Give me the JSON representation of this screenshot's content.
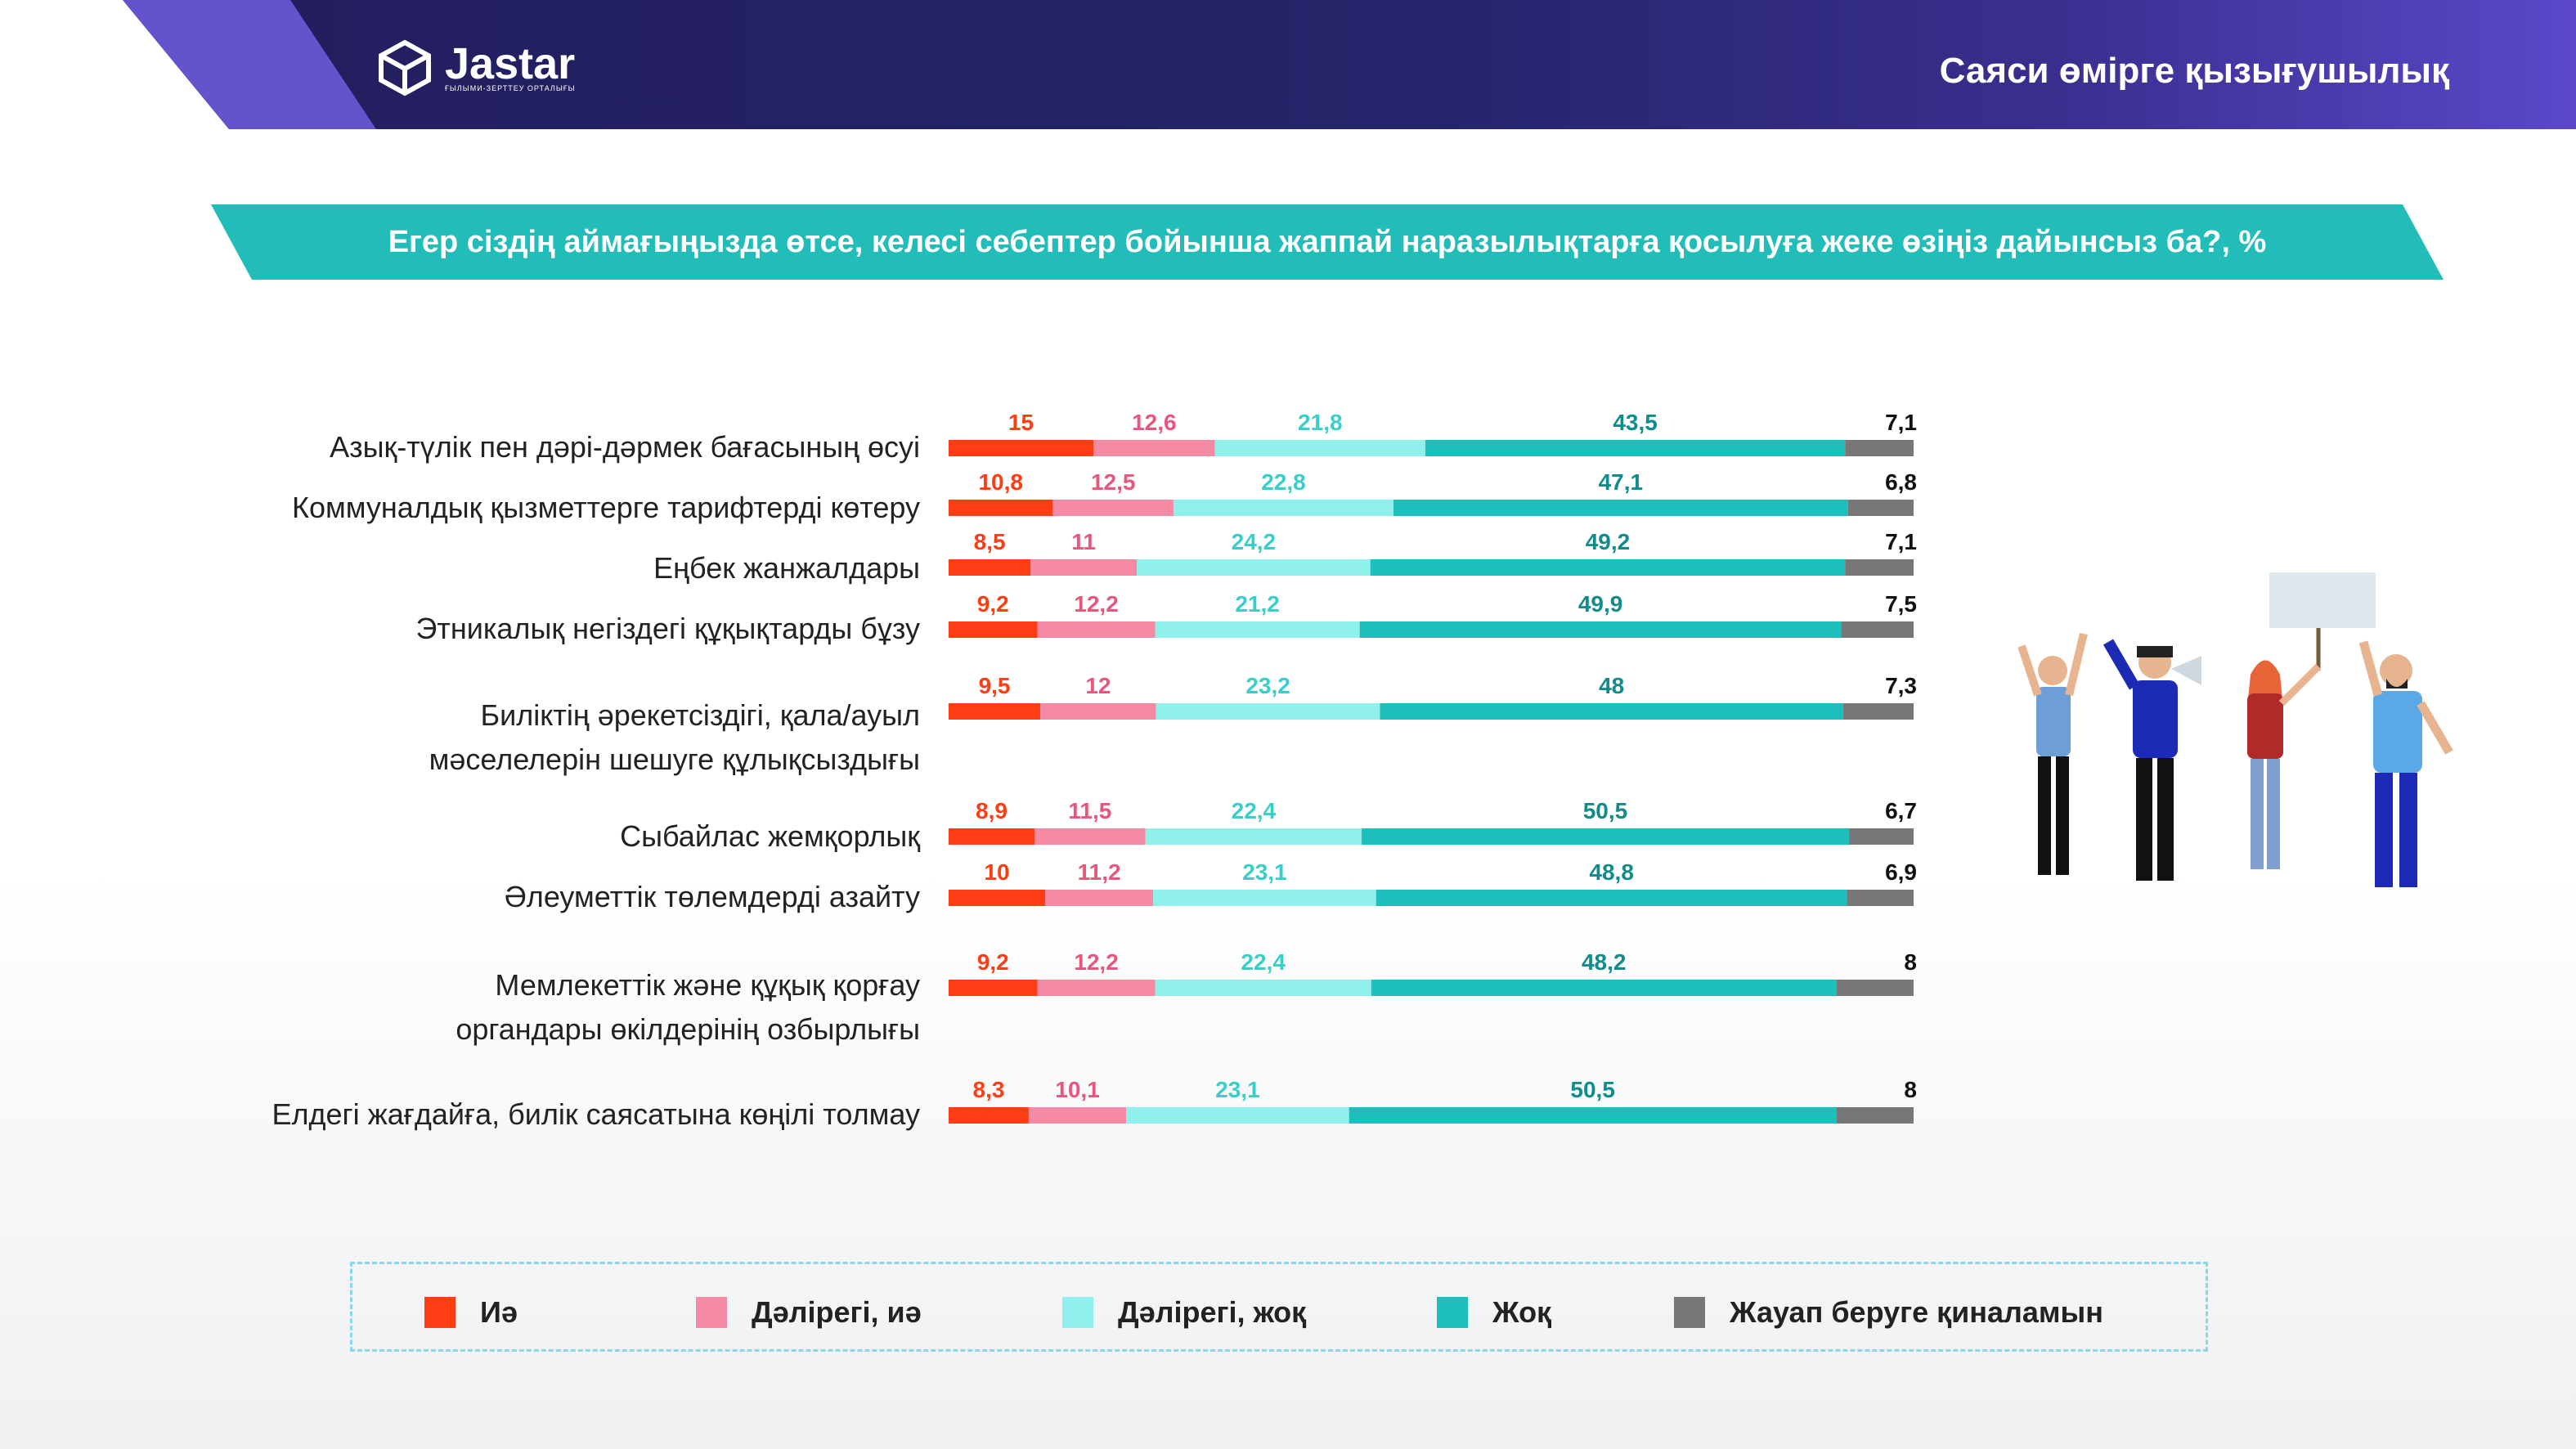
{
  "header": {
    "title": "Саяси өмірге қызығушылық",
    "logo_text": "Jastar",
    "logo_sub": "ҒЫЛЫМИ-ЗЕРТТЕУ ОРТАЛЫҒЫ"
  },
  "colors": {
    "header": "#221d5c",
    "banner": "#23bdb9",
    "ie": "#ff3d14",
    "dalirek_ie": "#f58aa5",
    "dalirek_zhok": "#8ff0ec",
    "zhok": "#1dbfbc",
    "zhauap": "#777777"
  },
  "chart_data": {
    "type": "bar",
    "orientation": "horizontal",
    "stacked": true,
    "title": "Егер сіздің аймағыңызда өтсе, келесі себептер бойынша жаппай наразылықтарға қосылуға жеке өзіңіз дайынсыз ба?, %",
    "categories": [
      [
        "Азық-түлік пен дәрі-дәрмек бағасының өсуі"
      ],
      [
        "Коммуналдық қызметтерге тарифтерді көтеру"
      ],
      [
        "Еңбек жанжалдары"
      ],
      [
        "Этникалық негіздегі құқықтарды бұзу"
      ],
      [
        "Биліктің әрекетсіздігі, қала/ауыл",
        "мәселелерін шешуге құлықсыздығы"
      ],
      [
        "Сыбайлас жемқорлық"
      ],
      [
        "Әлеуметтік төлемдерді азайту"
      ],
      [
        "Мемлекеттік және құқық қорғау",
        "органдары өкілдерінің озбырлығы"
      ],
      [
        "Елдегі жағдайға, билік саясатына көңілі толмау"
      ]
    ],
    "series": [
      {
        "name": "Иә",
        "color": "#ff3d14",
        "label_color": "#ff3d14",
        "values": [
          15,
          10.8,
          8.5,
          9.2,
          9.5,
          8.9,
          10,
          9.2,
          8.3
        ],
        "labels": [
          "15",
          "10,8",
          "8,5",
          "9,2",
          "9,5",
          "8,9",
          "10",
          "9,2",
          "8,3"
        ]
      },
      {
        "name": "Дәлірегі, иә",
        "color": "#f58aa5",
        "label_color": "#e8567c",
        "values": [
          12.6,
          12.5,
          11,
          12.2,
          12,
          11.5,
          11.2,
          12.2,
          10.1
        ],
        "labels": [
          "12,6",
          "12,5",
          "11",
          "12,2",
          "12",
          "11,5",
          "11,2",
          "12,2",
          "10,1"
        ]
      },
      {
        "name": "Дәлірегі, жоқ",
        "color": "#8ff0ec",
        "label_color": "#39cfc9",
        "values": [
          21.8,
          22.8,
          24.2,
          21.2,
          23.2,
          22.4,
          23.1,
          22.4,
          23.1
        ],
        "labels": [
          "21,8",
          "22,8",
          "24,2",
          "21,2",
          "23,2",
          "22,4",
          "23,1",
          "22,4",
          "23,1"
        ]
      },
      {
        "name": "Жоқ",
        "color": "#1dbfbc",
        "label_color": "#108c8a",
        "values": [
          43.5,
          47.1,
          49.2,
          49.9,
          48,
          50.5,
          48.8,
          48.2,
          50.5
        ],
        "labels": [
          "43,5",
          "47,1",
          "49,2",
          "49,9",
          "48",
          "50,5",
          "48,8",
          "48,2",
          "50,5"
        ]
      },
      {
        "name": "Жауап беруге қиналамын",
        "color": "#777777",
        "label_color": "#111111",
        "values": [
          7.1,
          6.8,
          7.1,
          7.5,
          7.3,
          6.7,
          6.9,
          8,
          8
        ],
        "labels": [
          "7,1",
          "6,8",
          "7,1",
          "7,5",
          "7,3",
          "6,7",
          "6,9",
          "8",
          "8"
        ]
      }
    ],
    "legend_position": "bottom",
    "grid": false
  }
}
